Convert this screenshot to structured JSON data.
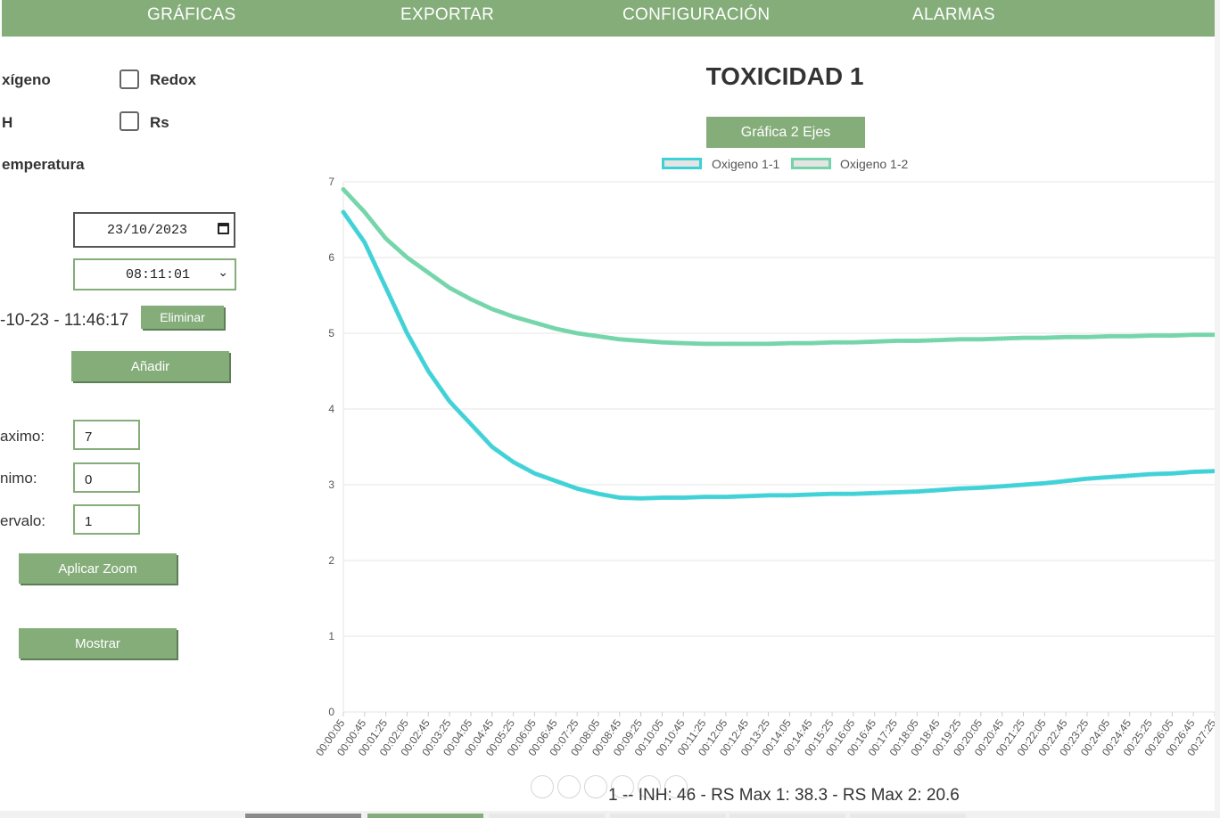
{
  "nav": {
    "items": [
      "GRÁFICAS",
      "EXPORTAR",
      "CONFIGURACIÓN",
      "ALARMAS"
    ]
  },
  "sidebar": {
    "checkboxes": [
      {
        "label": "xígeno",
        "checked": false
      },
      {
        "label": "Redox",
        "checked": false
      },
      {
        "label": "H",
        "checked": false
      },
      {
        "label": "Rs",
        "checked": false
      },
      {
        "label": "emperatura",
        "checked": false
      }
    ],
    "date_value": "23/10/2023",
    "time_value": "08:11:01",
    "saved_entry": "-10-23 - 11:46:17",
    "delete_label": "Eliminar",
    "add_label": "Añadir",
    "max_label": "aximo:",
    "max_value": "7",
    "min_label": "nimo:",
    "min_value": "0",
    "interval_label": "ervalo:",
    "interval_value": "1",
    "zoom_label": "Aplicar Zoom",
    "show_label": "Mostrar"
  },
  "chart_header": {
    "title": "TOXICIDAD 1",
    "two_axis_label": "Gráfica 2 Ejes"
  },
  "summary_text": "1 -- INH: 46 - RS Max 1: 38.3 - RS Max 2: 20.6",
  "chart_data": {
    "type": "line",
    "title": "TOXICIDAD 1",
    "xlabel": "",
    "ylabel": "",
    "ylim": [
      0,
      7
    ],
    "yticks": [
      0,
      1,
      2,
      3,
      4,
      5,
      6,
      7
    ],
    "grid": true,
    "legend_placement": "top-center",
    "x": [
      "00:00:05",
      "00:00:45",
      "00:01:25",
      "00:02:05",
      "00:02:45",
      "00:03:25",
      "00:04:05",
      "00:04:45",
      "00:05:25",
      "00:06:05",
      "00:06:45",
      "00:07:25",
      "00:08:05",
      "00:08:45",
      "00:09:25",
      "00:10:05",
      "00:10:45",
      "00:11:25",
      "00:12:05",
      "00:12:45",
      "00:13:25",
      "00:14:05",
      "00:14:45",
      "00:15:25",
      "00:16:05",
      "00:16:45",
      "00:17:25",
      "00:18:05",
      "00:18:45",
      "00:19:25",
      "00:20:05",
      "00:20:45",
      "00:21:25",
      "00:22:05",
      "00:22:45",
      "00:23:25",
      "00:24:05",
      "00:24:45",
      "00:25:25",
      "00:26:05",
      "00:26:45",
      "00:27:25"
    ],
    "series": [
      {
        "name": "Oxigeno 1-1",
        "color": "#3cd1d6",
        "values": [
          6.6,
          6.2,
          5.6,
          5.0,
          4.5,
          4.1,
          3.8,
          3.5,
          3.3,
          3.15,
          3.05,
          2.95,
          2.88,
          2.83,
          2.82,
          2.83,
          2.83,
          2.84,
          2.84,
          2.85,
          2.86,
          2.86,
          2.87,
          2.88,
          2.88,
          2.89,
          2.9,
          2.91,
          2.93,
          2.95,
          2.96,
          2.98,
          3.0,
          3.02,
          3.05,
          3.08,
          3.1,
          3.12,
          3.14,
          3.15,
          3.17,
          3.18
        ]
      },
      {
        "name": "Oxigeno 1-2",
        "color": "#72d4a8",
        "values": [
          6.9,
          6.6,
          6.25,
          6.0,
          5.8,
          5.6,
          5.45,
          5.32,
          5.22,
          5.14,
          5.06,
          5.0,
          4.96,
          4.92,
          4.9,
          4.88,
          4.87,
          4.86,
          4.86,
          4.86,
          4.86,
          4.87,
          4.87,
          4.88,
          4.88,
          4.89,
          4.9,
          4.9,
          4.91,
          4.92,
          4.92,
          4.93,
          4.94,
          4.94,
          4.95,
          4.95,
          4.96,
          4.96,
          4.97,
          4.97,
          4.98,
          4.98
        ]
      }
    ]
  },
  "colors": {
    "accent": "#84ad7a",
    "series_1": "#3cd1d6",
    "series_2": "#72d4a8",
    "grid": "#e6e6e6"
  }
}
